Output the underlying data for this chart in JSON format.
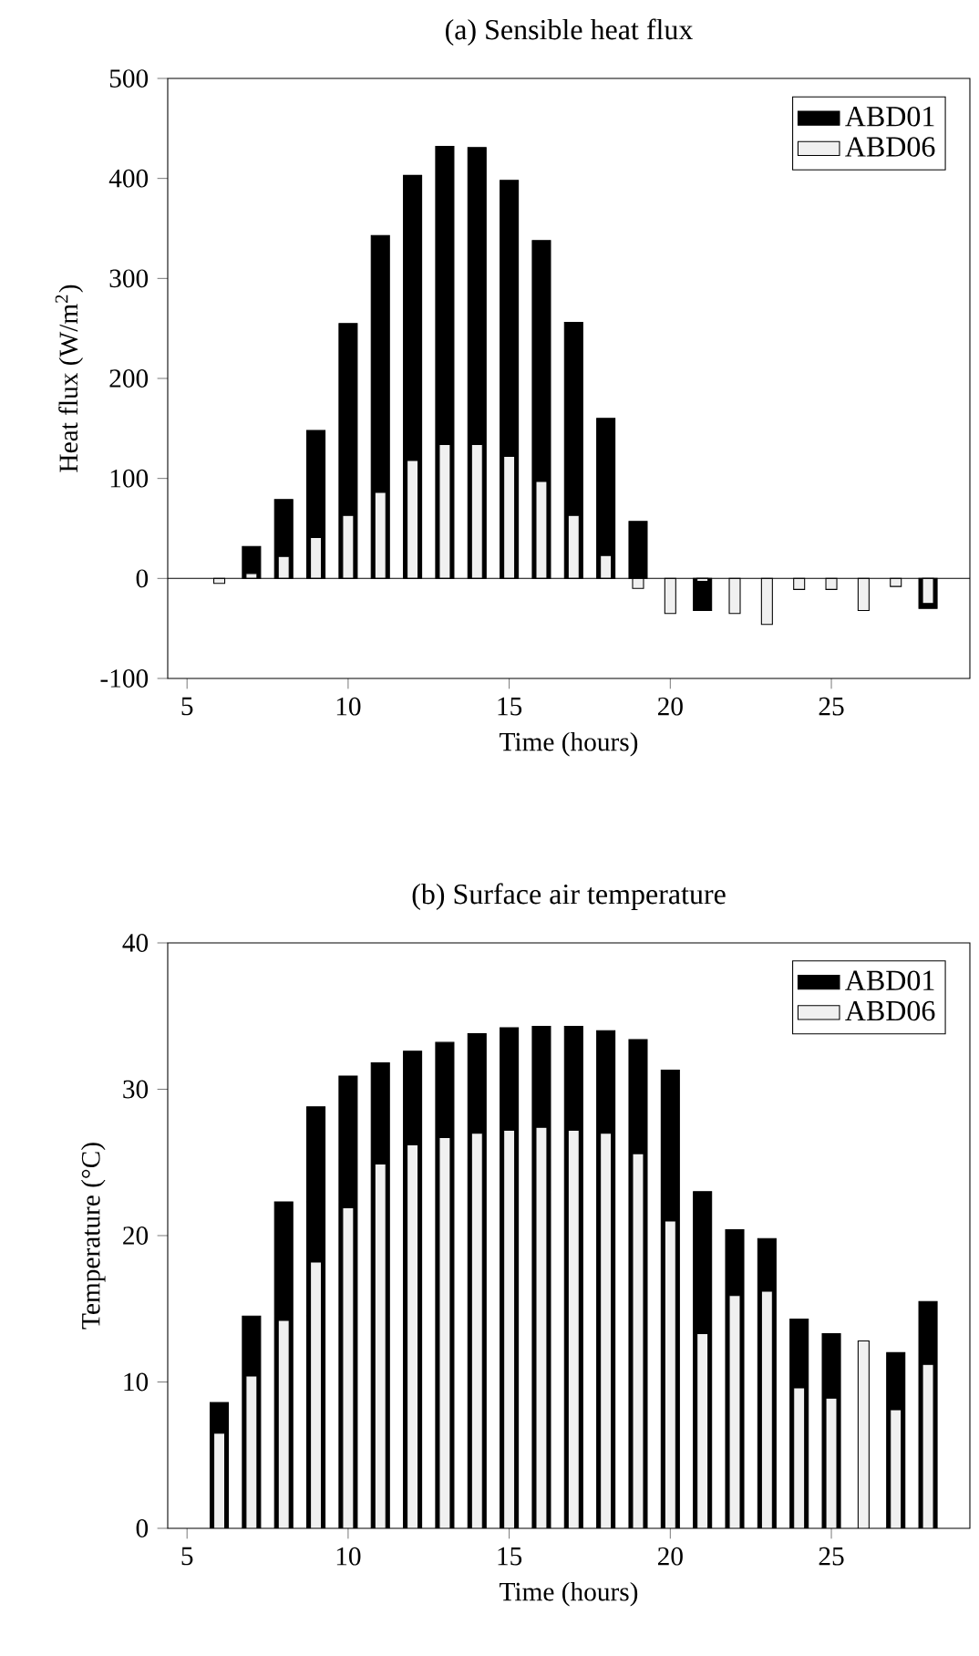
{
  "chart_data": [
    {
      "type": "bar",
      "title": "(a) Sensible heat flux",
      "xlabel": "Time (hours)",
      "ylabel": "Heat flux (W/m$^{2}$)",
      "x": [
        6,
        7,
        8,
        9,
        10,
        11,
        12,
        13,
        14,
        15,
        16,
        17,
        18,
        19,
        20,
        21,
        22,
        23,
        24,
        25,
        26,
        27,
        28
      ],
      "series": [
        {
          "name": "ABD01",
          "color": "#000000",
          "values": [
            null,
            32,
            79,
            148,
            255,
            343,
            403,
            432,
            431,
            398,
            338,
            256,
            160,
            57,
            null,
            -32,
            null,
            null,
            null,
            null,
            null,
            null,
            -30
          ]
        },
        {
          "name": "ABD06",
          "color": "#f0f0f0",
          "values": [
            -5,
            5,
            22,
            41,
            63,
            86,
            118,
            134,
            134,
            122,
            97,
            63,
            23,
            -10,
            -35,
            -3,
            -35,
            -46,
            -11,
            -11,
            -32,
            -8,
            -25
          ]
        }
      ],
      "xlim": [
        4.4,
        29.3
      ],
      "ylim": [
        -100,
        500
      ],
      "xticks": [
        5,
        10,
        15,
        20,
        25
      ],
      "yticks": [
        -100,
        0,
        100,
        200,
        300,
        400,
        500
      ],
      "ref_lines": [
        {
          "axis": "y",
          "value": 0,
          "color": "#000000"
        }
      ],
      "legend": "top right",
      "grid": false
    },
    {
      "type": "bar",
      "title": "(b) Surface air temperature",
      "xlabel": "Time (hours)",
      "ylabel": "Temperature (°C)",
      "x": [
        6,
        7,
        8,
        9,
        10,
        11,
        12,
        13,
        14,
        15,
        16,
        17,
        18,
        19,
        20,
        21,
        22,
        23,
        24,
        25,
        26,
        27,
        28
      ],
      "series": [
        {
          "name": "ABD01",
          "color": "#000000",
          "values": [
            8.6,
            14.5,
            22.3,
            28.8,
            30.9,
            31.8,
            32.6,
            33.2,
            33.8,
            34.2,
            34.3,
            34.3,
            34.0,
            33.4,
            31.3,
            23.0,
            20.4,
            19.8,
            14.3,
            13.3,
            null,
            12.0,
            15.5
          ]
        },
        {
          "name": "ABD06",
          "color": "#f0f0f0",
          "values": [
            6.5,
            10.4,
            14.2,
            18.2,
            21.9,
            24.9,
            26.2,
            26.7,
            27.0,
            27.2,
            27.4,
            27.2,
            27.0,
            25.6,
            21.0,
            13.3,
            15.9,
            16.2,
            9.6,
            8.9,
            12.8,
            8.1,
            11.2
          ]
        }
      ],
      "xlim": [
        4.4,
        29.3
      ],
      "ylim": [
        0,
        40
      ],
      "xticks": [
        5,
        10,
        15,
        20,
        25
      ],
      "yticks": [
        0,
        10,
        20,
        30,
        40
      ],
      "legend": "top right",
      "grid": false
    }
  ]
}
